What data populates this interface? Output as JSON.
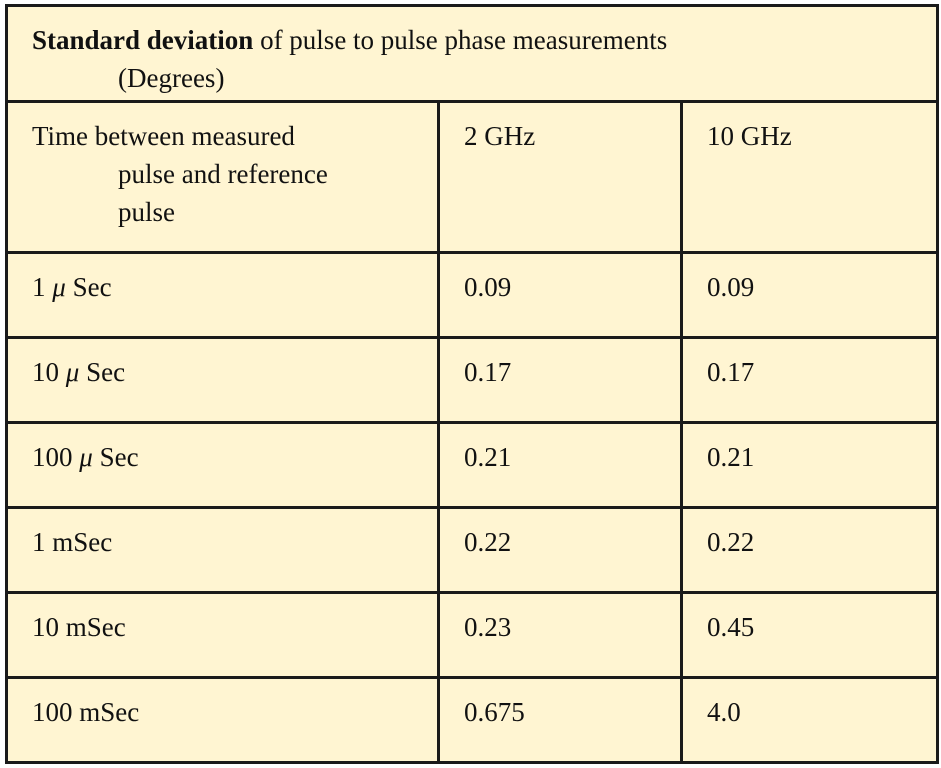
{
  "table": {
    "title_bold": "Standard deviation",
    "title_rest": " of pulse to pulse phase measurements",
    "title_unit": "(Degrees)",
    "headers": {
      "time_line1": "Time between measured",
      "time_line2": "pulse and reference",
      "time_line3": "pulse",
      "col2": "2 GHz",
      "col3": "10 GHz"
    },
    "rows": [
      {
        "time": "1  μ Sec",
        "ghz2": "0.09",
        "ghz10": "0.09"
      },
      {
        "time": "10  μ Sec",
        "ghz2": "0.17",
        "ghz10": "0.17"
      },
      {
        "time": "100  μ Sec",
        "ghz2": "0.21",
        "ghz10": "0.21"
      },
      {
        "time": "1 mSec",
        "ghz2": "0.22",
        "ghz10": "0.22"
      },
      {
        "time": "10 mSec",
        "ghz2": "0.23",
        "ghz10": "0.45"
      },
      {
        "time": "100 mSec",
        "ghz2": "0.675",
        "ghz10": "4.0"
      }
    ]
  },
  "colors": {
    "background": "#fff5d2",
    "border": "#1a1a1a"
  }
}
